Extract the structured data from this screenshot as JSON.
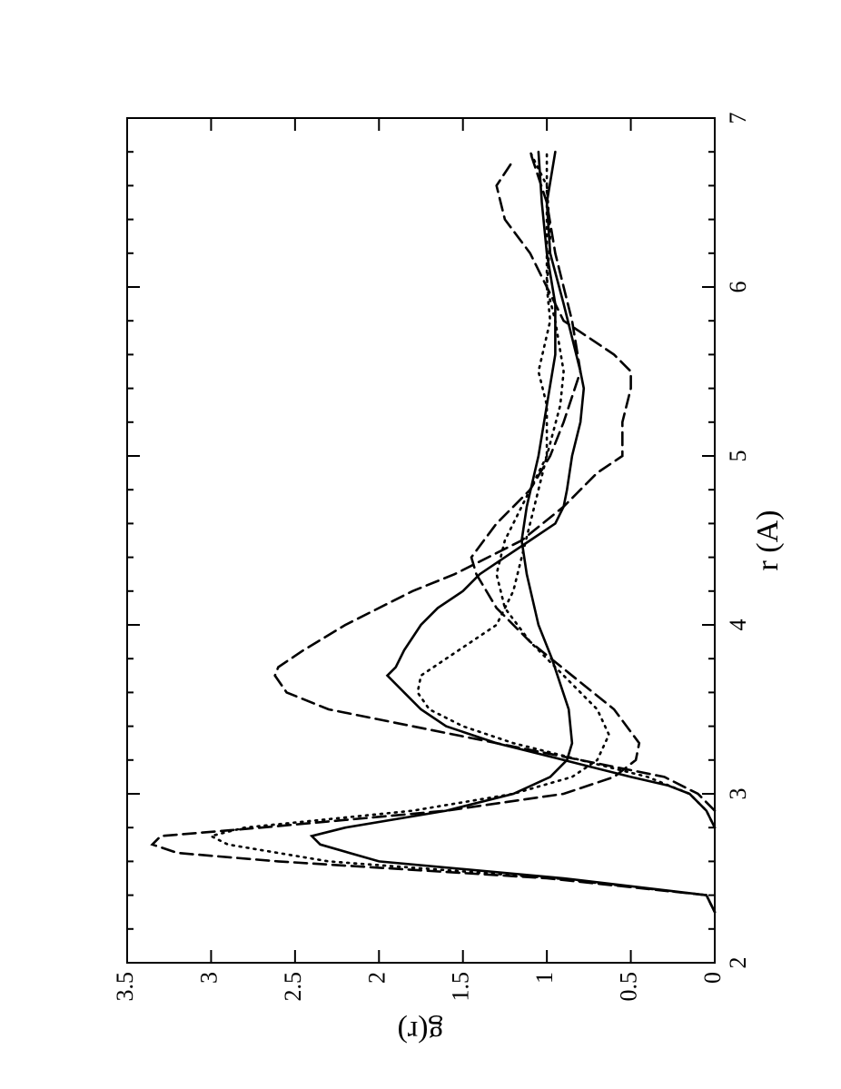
{
  "chart_data": {
    "type": "line",
    "xlabel": "r (A)",
    "ylabel": "g(r)",
    "xlim": [
      2,
      7
    ],
    "ylim": [
      0,
      3.5
    ],
    "xticks": [
      2,
      3,
      4,
      5,
      6,
      7
    ],
    "xminorticks": [
      2.2,
      2.4,
      2.6,
      2.8,
      3.2,
      3.4,
      3.6,
      3.8,
      4.2,
      4.4,
      4.6,
      4.8,
      5.2,
      5.4,
      5.6,
      5.8,
      6.2,
      6.4,
      6.6,
      6.8
    ],
    "yticks": [
      0,
      0.5,
      1,
      1.5,
      2,
      2.5,
      3,
      3.5
    ],
    "rotation": -90,
    "series": [
      {
        "color": "#000000",
        "style": "solid",
        "x": [
          2.3,
          2.4,
          2.5,
          2.6,
          2.7,
          2.75,
          2.8,
          2.9,
          3.0,
          3.1,
          3.2,
          3.3,
          3.5,
          3.8,
          4.0,
          4.3,
          4.5,
          4.7,
          5.0,
          5.3,
          5.6,
          5.9,
          6.2,
          6.5,
          6.8
        ],
        "values": [
          0,
          0.05,
          0.9,
          2.0,
          2.35,
          2.4,
          2.2,
          1.6,
          1.2,
          0.98,
          0.88,
          0.85,
          0.87,
          0.97,
          1.05,
          1.12,
          1.15,
          1.12,
          1.05,
          1.0,
          0.95,
          0.95,
          1.0,
          1.03,
          1.05
        ]
      },
      {
        "color": "#000000",
        "style": "solid",
        "x": [
          2.8,
          2.9,
          3.0,
          3.05,
          3.1,
          3.2,
          3.3,
          3.4,
          3.5,
          3.6,
          3.7,
          3.75,
          3.85,
          4.0,
          4.1,
          4.2,
          4.3,
          4.4,
          4.5,
          4.6,
          4.7,
          4.8,
          5.0,
          5.2,
          5.4,
          5.5,
          5.7,
          5.9,
          6.2,
          6.5,
          6.8
        ],
        "values": [
          0,
          0.05,
          0.15,
          0.28,
          0.5,
          0.9,
          1.3,
          1.6,
          1.75,
          1.85,
          1.95,
          1.9,
          1.85,
          1.75,
          1.65,
          1.5,
          1.4,
          1.25,
          1.1,
          0.95,
          0.9,
          0.88,
          0.85,
          0.8,
          0.78,
          0.8,
          0.85,
          0.9,
          0.98,
          1.0,
          0.95
        ]
      },
      {
        "color": "#000000",
        "style": "dashed",
        "x": [
          2.3,
          2.4,
          2.5,
          2.6,
          2.65,
          2.7,
          2.75,
          2.8,
          2.9,
          3.0,
          3.1,
          3.2,
          3.3,
          3.5,
          3.7,
          3.9,
          4.1,
          4.3,
          4.4,
          4.6,
          4.8,
          5.0,
          5.2,
          5.5,
          5.8,
          6.0,
          6.2,
          6.5,
          6.8
        ],
        "values": [
          0,
          0.05,
          1.0,
          2.6,
          3.2,
          3.35,
          3.3,
          2.7,
          1.6,
          0.9,
          0.6,
          0.47,
          0.45,
          0.6,
          0.85,
          1.1,
          1.3,
          1.42,
          1.45,
          1.3,
          1.1,
          0.98,
          0.9,
          0.8,
          0.85,
          0.9,
          0.95,
          1.0,
          1.1
        ]
      },
      {
        "color": "#000000",
        "style": "dashed",
        "x": [
          2.9,
          3.0,
          3.1,
          3.2,
          3.3,
          3.4,
          3.5,
          3.6,
          3.7,
          3.75,
          3.85,
          4.0,
          4.2,
          4.3,
          4.5,
          4.7,
          4.9,
          5.0,
          5.2,
          5.4,
          5.5,
          5.6,
          5.7,
          5.8,
          6.0,
          6.2,
          6.4,
          6.6,
          6.75
        ],
        "values": [
          0,
          0.1,
          0.3,
          0.8,
          1.3,
          1.8,
          2.3,
          2.55,
          2.62,
          2.6,
          2.45,
          2.2,
          1.8,
          1.55,
          1.15,
          0.9,
          0.7,
          0.55,
          0.55,
          0.5,
          0.5,
          0.6,
          0.75,
          0.9,
          1.0,
          1.1,
          1.25,
          1.3,
          1.2
        ]
      },
      {
        "color": "#000000",
        "style": "dotted",
        "x": [
          2.3,
          2.4,
          2.5,
          2.6,
          2.7,
          2.75,
          2.8,
          2.9,
          3.0,
          3.1,
          3.2,
          3.35,
          3.5,
          3.7,
          3.9,
          4.1,
          4.3,
          4.5,
          4.7,
          5.0,
          5.3,
          5.5,
          5.8,
          6.0,
          6.3,
          6.6,
          6.8
        ],
        "values": [
          0,
          0.05,
          0.95,
          2.3,
          2.9,
          3.0,
          2.8,
          1.8,
          1.2,
          0.85,
          0.7,
          0.63,
          0.7,
          0.9,
          1.1,
          1.25,
          1.3,
          1.25,
          1.15,
          1.0,
          0.92,
          0.9,
          0.95,
          1.0,
          1.0,
          1.0,
          1.0
        ]
      },
      {
        "color": "#000000",
        "style": "dotted",
        "x": [
          2.8,
          2.9,
          3.0,
          3.1,
          3.2,
          3.3,
          3.4,
          3.5,
          3.6,
          3.7,
          3.8,
          3.9,
          4.0,
          4.2,
          4.4,
          4.6,
          4.8,
          5.0,
          5.3,
          5.5,
          5.8,
          6.0,
          6.3,
          6.6,
          6.8
        ],
        "values": [
          0,
          0.05,
          0.15,
          0.4,
          0.8,
          1.2,
          1.5,
          1.7,
          1.77,
          1.75,
          1.6,
          1.45,
          1.3,
          1.2,
          1.15,
          1.1,
          1.05,
          1.0,
          1.0,
          1.05,
          0.98,
          1.0,
          0.98,
          1.0,
          1.1
        ]
      }
    ]
  }
}
